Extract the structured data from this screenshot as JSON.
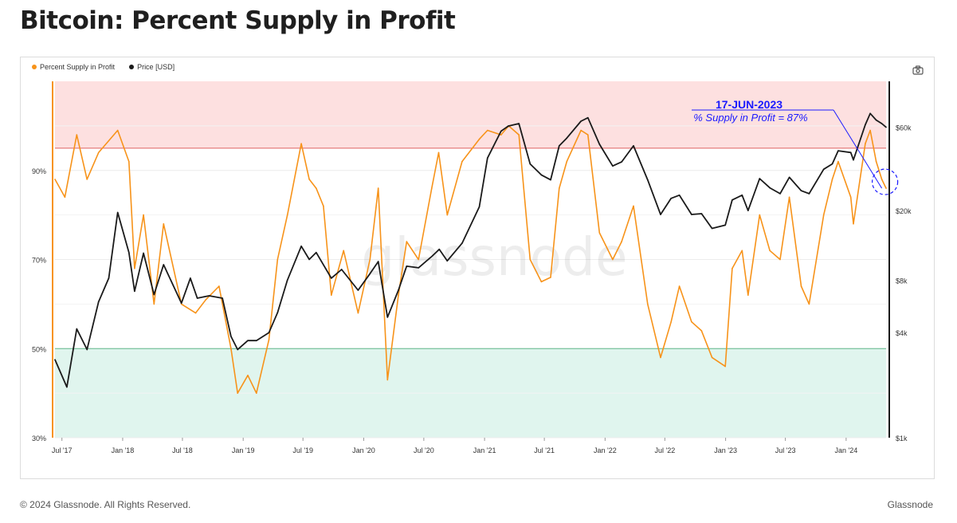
{
  "header": {
    "title": "Bitcoin: Percent Supply in Profit"
  },
  "legend": [
    {
      "label": "Percent Supply in Profit",
      "color": "#f7931a"
    },
    {
      "label": "Price [USD]",
      "color": "#1a1a1a"
    }
  ],
  "watermark": "glassnode",
  "annotation": {
    "date": "17-JUN-2023",
    "text": "% Supply in Profit = 87%",
    "color": "#1a1aff"
  },
  "footer": {
    "copyright": "© 2024 Glassnode. All Rights Reserved.",
    "brand": "Glassnode"
  },
  "colors": {
    "supply": "#f7931a",
    "price": "#1a1a1a",
    "upper_zone": "#fde0e0",
    "lower_zone": "#e0f5ee",
    "upper_line": "#e06060",
    "lower_line": "#5fb88a"
  },
  "chart_data": {
    "type": "line",
    "title": "Bitcoin: Percent Supply in Profit",
    "x_ticks": [
      "Jul '17",
      "Jan '18",
      "Jul '18",
      "Jan '19",
      "Jul '19",
      "Jan '20",
      "Jul '20",
      "Jan '21",
      "Jul '21",
      "Jan '22",
      "Jul '22",
      "Jan '23",
      "Jul '23",
      "Jan '24"
    ],
    "x_range": [
      "2017-06-10",
      "2024-05-01"
    ],
    "y_left": {
      "ticks": [
        "30%",
        "50%",
        "70%",
        "90%"
      ],
      "tick_values": [
        30,
        50,
        70,
        90
      ],
      "range": [
        30,
        110
      ]
    },
    "y_right": {
      "scale": "log",
      "ticks": [
        "$1k",
        "$4k",
        "$8k",
        "$20k",
        "$60k"
      ],
      "tick_values": [
        1000,
        4000,
        8000,
        20000,
        60000
      ],
      "range": [
        1000,
        110000
      ]
    },
    "zones": {
      "upper_threshold": 95,
      "lower_threshold": 50
    },
    "series": [
      {
        "name": "Percent Supply in Profit",
        "axis": "left",
        "points": [
          [
            "2017-06-10",
            88
          ],
          [
            "2017-07-10",
            84
          ],
          [
            "2017-08-15",
            98
          ],
          [
            "2017-09-15",
            88
          ],
          [
            "2017-10-20",
            94
          ],
          [
            "2017-12-17",
            99
          ],
          [
            "2018-01-20",
            92
          ],
          [
            "2018-02-06",
            68
          ],
          [
            "2018-03-05",
            80
          ],
          [
            "2018-04-06",
            60
          ],
          [
            "2018-05-05",
            78
          ],
          [
            "2018-06-28",
            60
          ],
          [
            "2018-08-10",
            58
          ],
          [
            "2018-09-10",
            61
          ],
          [
            "2018-10-20",
            64
          ],
          [
            "2018-11-25",
            50
          ],
          [
            "2018-12-15",
            40
          ],
          [
            "2019-01-15",
            44
          ],
          [
            "2019-02-10",
            40
          ],
          [
            "2019-03-20",
            52
          ],
          [
            "2019-04-15",
            70
          ],
          [
            "2019-05-15",
            80
          ],
          [
            "2019-06-26",
            96
          ],
          [
            "2019-07-20",
            88
          ],
          [
            "2019-08-10",
            86
          ],
          [
            "2019-09-01",
            82
          ],
          [
            "2019-09-25",
            62
          ],
          [
            "2019-11-01",
            72
          ],
          [
            "2019-12-15",
            58
          ],
          [
            "2020-01-20",
            70
          ],
          [
            "2020-02-14",
            86
          ],
          [
            "2020-03-13",
            43
          ],
          [
            "2020-04-15",
            62
          ],
          [
            "2020-05-10",
            74
          ],
          [
            "2020-06-15",
            70
          ],
          [
            "2020-07-25",
            86
          ],
          [
            "2020-08-15",
            94
          ],
          [
            "2020-09-10",
            80
          ],
          [
            "2020-10-25",
            92
          ],
          [
            "2020-12-16",
            97
          ],
          [
            "2021-01-10",
            99
          ],
          [
            "2021-02-20",
            98
          ],
          [
            "2021-03-15",
            100
          ],
          [
            "2021-04-15",
            98
          ],
          [
            "2021-05-19",
            70
          ],
          [
            "2021-06-22",
            65
          ],
          [
            "2021-07-20",
            66
          ],
          [
            "2021-08-15",
            86
          ],
          [
            "2021-09-07",
            92
          ],
          [
            "2021-10-20",
            99
          ],
          [
            "2021-11-10",
            98
          ],
          [
            "2021-12-15",
            76
          ],
          [
            "2022-01-24",
            70
          ],
          [
            "2022-02-20",
            74
          ],
          [
            "2022-03-28",
            82
          ],
          [
            "2022-05-10",
            60
          ],
          [
            "2022-06-18",
            48
          ],
          [
            "2022-07-20",
            56
          ],
          [
            "2022-08-14",
            64
          ],
          [
            "2022-09-20",
            56
          ],
          [
            "2022-10-20",
            54
          ],
          [
            "2022-11-21",
            48
          ],
          [
            "2022-12-31",
            46
          ],
          [
            "2023-01-21",
            68
          ],
          [
            "2023-02-20",
            72
          ],
          [
            "2023-03-10",
            62
          ],
          [
            "2023-04-14",
            80
          ],
          [
            "2023-05-15",
            72
          ],
          [
            "2023-06-15",
            70
          ],
          [
            "2023-07-13",
            84
          ],
          [
            "2023-08-18",
            64
          ],
          [
            "2023-09-11",
            60
          ],
          [
            "2023-10-25",
            80
          ],
          [
            "2023-11-20",
            88
          ],
          [
            "2023-12-08",
            92
          ],
          [
            "2024-01-15",
            84
          ],
          [
            "2024-01-23",
            78
          ],
          [
            "2024-02-28",
            96
          ],
          [
            "2024-03-14",
            99
          ],
          [
            "2024-04-01",
            92
          ],
          [
            "2024-04-18",
            88
          ],
          [
            "2024-05-01",
            86
          ]
        ]
      },
      {
        "name": "Price [USD]",
        "axis": "right",
        "points": [
          [
            "2017-06-10",
            2800
          ],
          [
            "2017-07-16",
            1950
          ],
          [
            "2017-08-15",
            4200
          ],
          [
            "2017-09-15",
            3200
          ],
          [
            "2017-10-20",
            6000
          ],
          [
            "2017-11-20",
            8200
          ],
          [
            "2017-12-17",
            19500
          ],
          [
            "2018-01-20",
            11500
          ],
          [
            "2018-02-06",
            6900
          ],
          [
            "2018-03-05",
            11400
          ],
          [
            "2018-04-06",
            6600
          ],
          [
            "2018-05-05",
            9800
          ],
          [
            "2018-06-28",
            5900
          ],
          [
            "2018-07-25",
            8200
          ],
          [
            "2018-08-15",
            6300
          ],
          [
            "2018-09-20",
            6500
          ],
          [
            "2018-10-30",
            6300
          ],
          [
            "2018-11-25",
            3800
          ],
          [
            "2018-12-15",
            3200
          ],
          [
            "2019-01-15",
            3600
          ],
          [
            "2019-02-10",
            3600
          ],
          [
            "2019-03-20",
            4000
          ],
          [
            "2019-04-15",
            5200
          ],
          [
            "2019-05-15",
            8000
          ],
          [
            "2019-06-26",
            12500
          ],
          [
            "2019-07-20",
            10500
          ],
          [
            "2019-08-10",
            11500
          ],
          [
            "2019-09-25",
            8200
          ],
          [
            "2019-10-26",
            9200
          ],
          [
            "2019-12-15",
            7000
          ],
          [
            "2020-01-20",
            8700
          ],
          [
            "2020-02-14",
            10200
          ],
          [
            "2020-03-13",
            4900
          ],
          [
            "2020-04-15",
            7000
          ],
          [
            "2020-05-10",
            9600
          ],
          [
            "2020-06-15",
            9400
          ],
          [
            "2020-07-27",
            11000
          ],
          [
            "2020-08-17",
            12000
          ],
          [
            "2020-09-10",
            10300
          ],
          [
            "2020-10-25",
            13000
          ],
          [
            "2020-12-16",
            21000
          ],
          [
            "2021-01-10",
            40000
          ],
          [
            "2021-02-20",
            57000
          ],
          [
            "2021-03-14",
            61000
          ],
          [
            "2021-04-15",
            63000
          ],
          [
            "2021-05-19",
            37000
          ],
          [
            "2021-06-22",
            32000
          ],
          [
            "2021-07-20",
            30000
          ],
          [
            "2021-08-15",
            47000
          ],
          [
            "2021-09-07",
            52000
          ],
          [
            "2021-10-20",
            65000
          ],
          [
            "2021-11-10",
            68000
          ],
          [
            "2021-12-15",
            48000
          ],
          [
            "2022-01-24",
            36000
          ],
          [
            "2022-02-20",
            38000
          ],
          [
            "2022-03-28",
            47000
          ],
          [
            "2022-05-10",
            30000
          ],
          [
            "2022-06-18",
            19000
          ],
          [
            "2022-07-20",
            23500
          ],
          [
            "2022-08-14",
            24500
          ],
          [
            "2022-09-20",
            19000
          ],
          [
            "2022-10-20",
            19200
          ],
          [
            "2022-11-21",
            15800
          ],
          [
            "2022-12-31",
            16500
          ],
          [
            "2023-01-21",
            23000
          ],
          [
            "2023-02-20",
            24500
          ],
          [
            "2023-03-10",
            20000
          ],
          [
            "2023-04-14",
            30500
          ],
          [
            "2023-05-15",
            27000
          ],
          [
            "2023-06-15",
            25000
          ],
          [
            "2023-07-13",
            31000
          ],
          [
            "2023-08-18",
            26000
          ],
          [
            "2023-09-11",
            25000
          ],
          [
            "2023-10-25",
            34500
          ],
          [
            "2023-11-20",
            37000
          ],
          [
            "2023-12-08",
            44000
          ],
          [
            "2024-01-15",
            43000
          ],
          [
            "2024-01-23",
            39000
          ],
          [
            "2024-02-28",
            62000
          ],
          [
            "2024-03-14",
            72000
          ],
          [
            "2024-04-01",
            66000
          ],
          [
            "2024-04-18",
            63000
          ],
          [
            "2024-05-01",
            60000
          ]
        ]
      }
    ]
  }
}
